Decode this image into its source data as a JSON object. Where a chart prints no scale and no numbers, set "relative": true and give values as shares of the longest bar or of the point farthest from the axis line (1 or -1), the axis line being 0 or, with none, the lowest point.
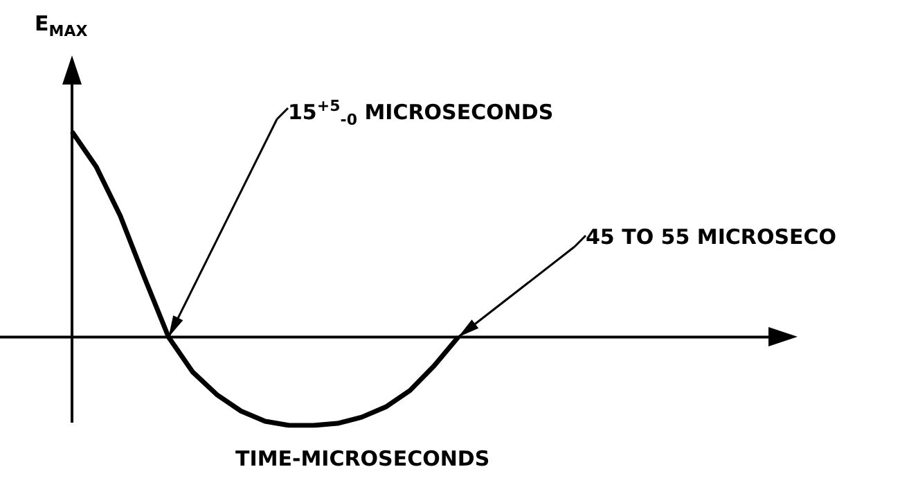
{
  "chart_data": {
    "type": "line",
    "relative": true,
    "xlabel": "TIME-MICROSECONDS",
    "ylabel": "E$_{MAX}$",
    "categories": [
      null,
      null,
      null,
      null,
      null,
      null,
      null,
      null,
      null,
      null,
      null,
      null,
      null,
      null,
      null,
      null,
      null,
      null,
      null,
      null,
      null,
      null,
      null,
      null,
      null,
      null,
      null,
      null,
      null,
      null,
      null
    ],
    "values": [
      1.0,
      0.83,
      0.59,
      0.29,
      0,
      -0.17,
      -0.28,
      -0.36,
      -0.41,
      -0.43,
      -0.43,
      -0.42,
      -0.39,
      -0.34,
      -0.26,
      -0.14,
      0,
      null,
      null,
      null,
      null,
      null,
      null,
      null,
      null,
      null,
      null,
      null,
      null,
      null,
      null
    ],
    "color": "#000000",
    "grid": false,
    "marker": "none",
    "annotations": [
      "15$^{+5}$$_{-0}$ MICROSECONDS",
      "45 TO 55 MICROSECO"
    ]
  }
}
